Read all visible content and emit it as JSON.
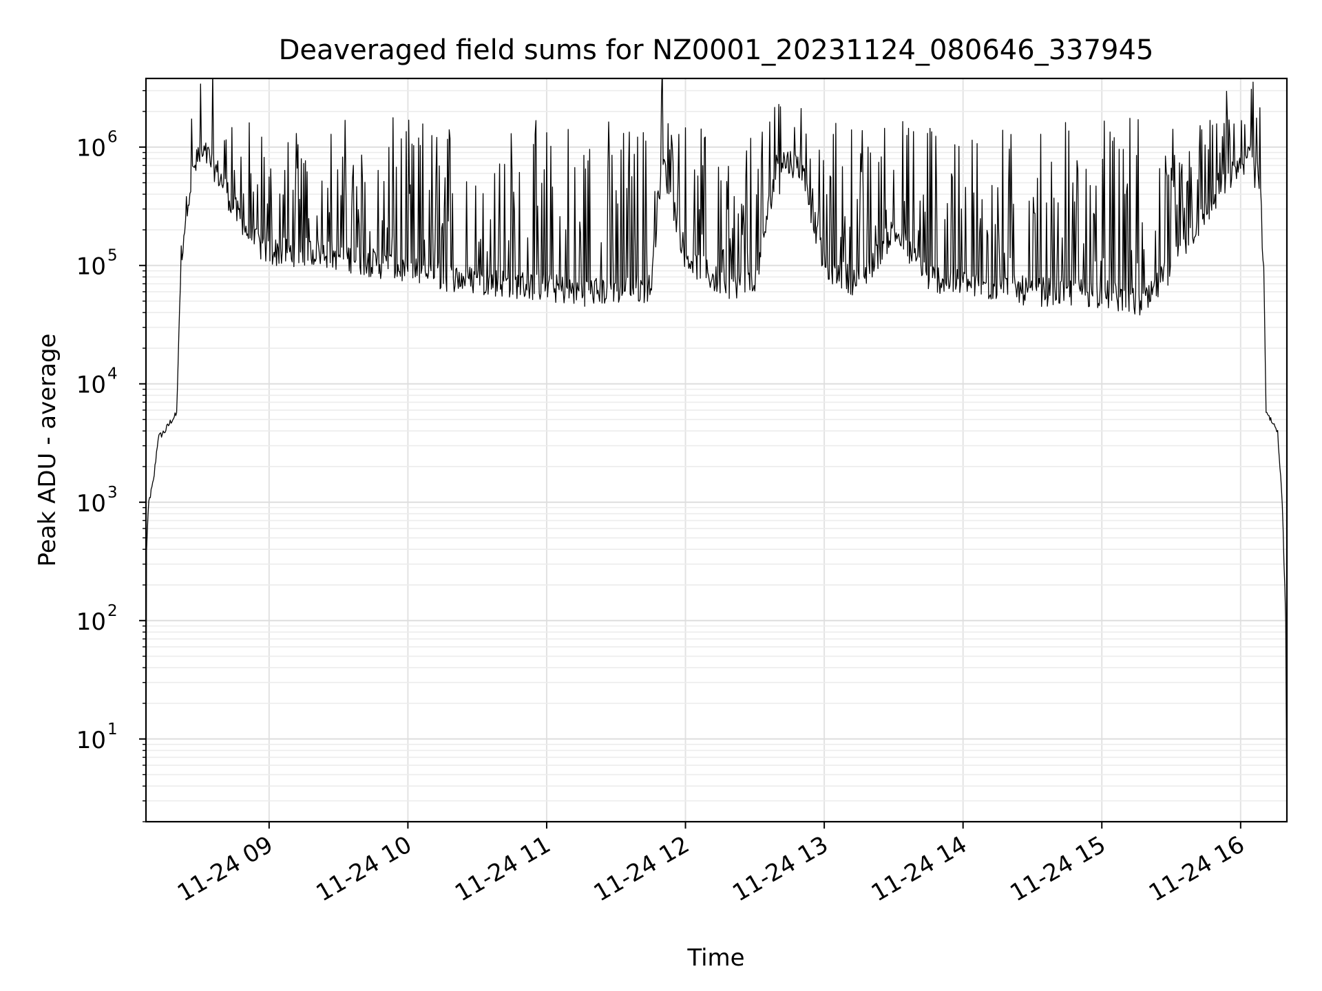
{
  "chart_data": {
    "type": "line",
    "title": "Deaveraged field sums for NZ0001_20231124_080646_337945",
    "xlabel": "Time",
    "ylabel": "Peak ADU - average",
    "yscale": "log",
    "ylim": [
      2,
      3800000
    ],
    "xlim": [
      "2023-11-24 08:06:46",
      "2023-11-24 16:20:00"
    ],
    "grid": true,
    "x_ticks": [
      {
        "label": "11-24 09",
        "value": "2023-11-24 09:00"
      },
      {
        "label": "11-24 10",
        "value": "2023-11-24 10:00"
      },
      {
        "label": "11-24 11",
        "value": "2023-11-24 11:00"
      },
      {
        "label": "11-24 12",
        "value": "2023-11-24 12:00"
      },
      {
        "label": "11-24 13",
        "value": "2023-11-24 13:00"
      },
      {
        "label": "11-24 14",
        "value": "2023-11-24 14:00"
      },
      {
        "label": "11-24 15",
        "value": "2023-11-24 15:00"
      },
      {
        "label": "11-24 16",
        "value": "2023-11-24 16:00"
      }
    ],
    "y_ticks": [
      {
        "base": "10",
        "exp": "1",
        "value": 10
      },
      {
        "base": "10",
        "exp": "2",
        "value": 100
      },
      {
        "base": "10",
        "exp": "3",
        "value": 1000
      },
      {
        "base": "10",
        "exp": "4",
        "value": 10000
      },
      {
        "base": "10",
        "exp": "5",
        "value": 100000
      },
      {
        "base": "10",
        "exp": "6",
        "value": 1000000
      }
    ],
    "series": [
      {
        "color": "#000000",
        "x": [
          "2023-11-24 08:06:46",
          "2023-11-24 08:07:00",
          "2023-11-24 08:08:00",
          "2023-11-24 08:10:00",
          "2023-11-24 08:12:00",
          "2023-11-24 08:15:00",
          "2023-11-24 08:18:00",
          "2023-11-24 08:20:00",
          "2023-11-24 08:22:00",
          "2023-11-24 08:25:00",
          "2023-11-24 08:28:00",
          "2023-11-24 08:30:00",
          "2023-11-24 08:33:00",
          "2023-11-24 08:36:00",
          "2023-11-24 08:40:00",
          "2023-11-24 08:45:00",
          "2023-11-24 08:50:00",
          "2023-11-24 08:55:00",
          "2023-11-24 09:00:00",
          "2023-11-24 09:10:00",
          "2023-11-24 09:20:00",
          "2023-11-24 09:30:00",
          "2023-11-24 09:40:00",
          "2023-11-24 09:50:00",
          "2023-11-24 10:00:00",
          "2023-11-24 10:15:00",
          "2023-11-24 10:30:00",
          "2023-11-24 10:45:00",
          "2023-11-24 11:00:00",
          "2023-11-24 11:15:00",
          "2023-11-24 11:30:00",
          "2023-11-24 11:45:00",
          "2023-11-24 11:50:00",
          "2023-11-24 12:00:00",
          "2023-11-24 12:15:00",
          "2023-11-24 12:30:00",
          "2023-11-24 12:40:00",
          "2023-11-24 12:50:00",
          "2023-11-24 13:00:00",
          "2023-11-24 13:15:00",
          "2023-11-24 13:30:00",
          "2023-11-24 13:45:00",
          "2023-11-24 14:00:00",
          "2023-11-24 14:15:00",
          "2023-11-24 14:30:00",
          "2023-11-24 14:45:00",
          "2023-11-24 15:00:00",
          "2023-11-24 15:10:00",
          "2023-11-24 15:15:00",
          "2023-11-24 15:20:00",
          "2023-11-24 15:30:00",
          "2023-11-24 15:40:00",
          "2023-11-24 15:50:00",
          "2023-11-24 16:00:00",
          "2023-11-24 16:05:00",
          "2023-11-24 16:08:00",
          "2023-11-24 16:10:00",
          "2023-11-24 16:11:00",
          "2023-11-24 16:13:00",
          "2023-11-24 16:16:00",
          "2023-11-24 16:18:00",
          "2023-11-24 16:19:30",
          "2023-11-24 16:20:00"
        ],
        "y": [
          2,
          400,
          1000,
          1500,
          3500,
          4000,
          5000,
          5500,
          120000,
          400000,
          700000,
          800000,
          850000,
          700000,
          500000,
          300000,
          200000,
          150000,
          130000,
          130000,
          130000,
          120000,
          110000,
          100000,
          90000,
          80000,
          75000,
          70000,
          65000,
          60000,
          62000,
          65000,
          800000,
          120000,
          70000,
          70000,
          800000,
          700000,
          100000,
          70000,
          200000,
          80000,
          70000,
          65000,
          60000,
          60000,
          58000,
          52000,
          48000,
          50000,
          100000,
          200000,
          400000,
          750000,
          850000,
          600000,
          100000,
          6000,
          5000,
          4000,
          1000,
          100,
          2
        ]
      }
    ]
  }
}
